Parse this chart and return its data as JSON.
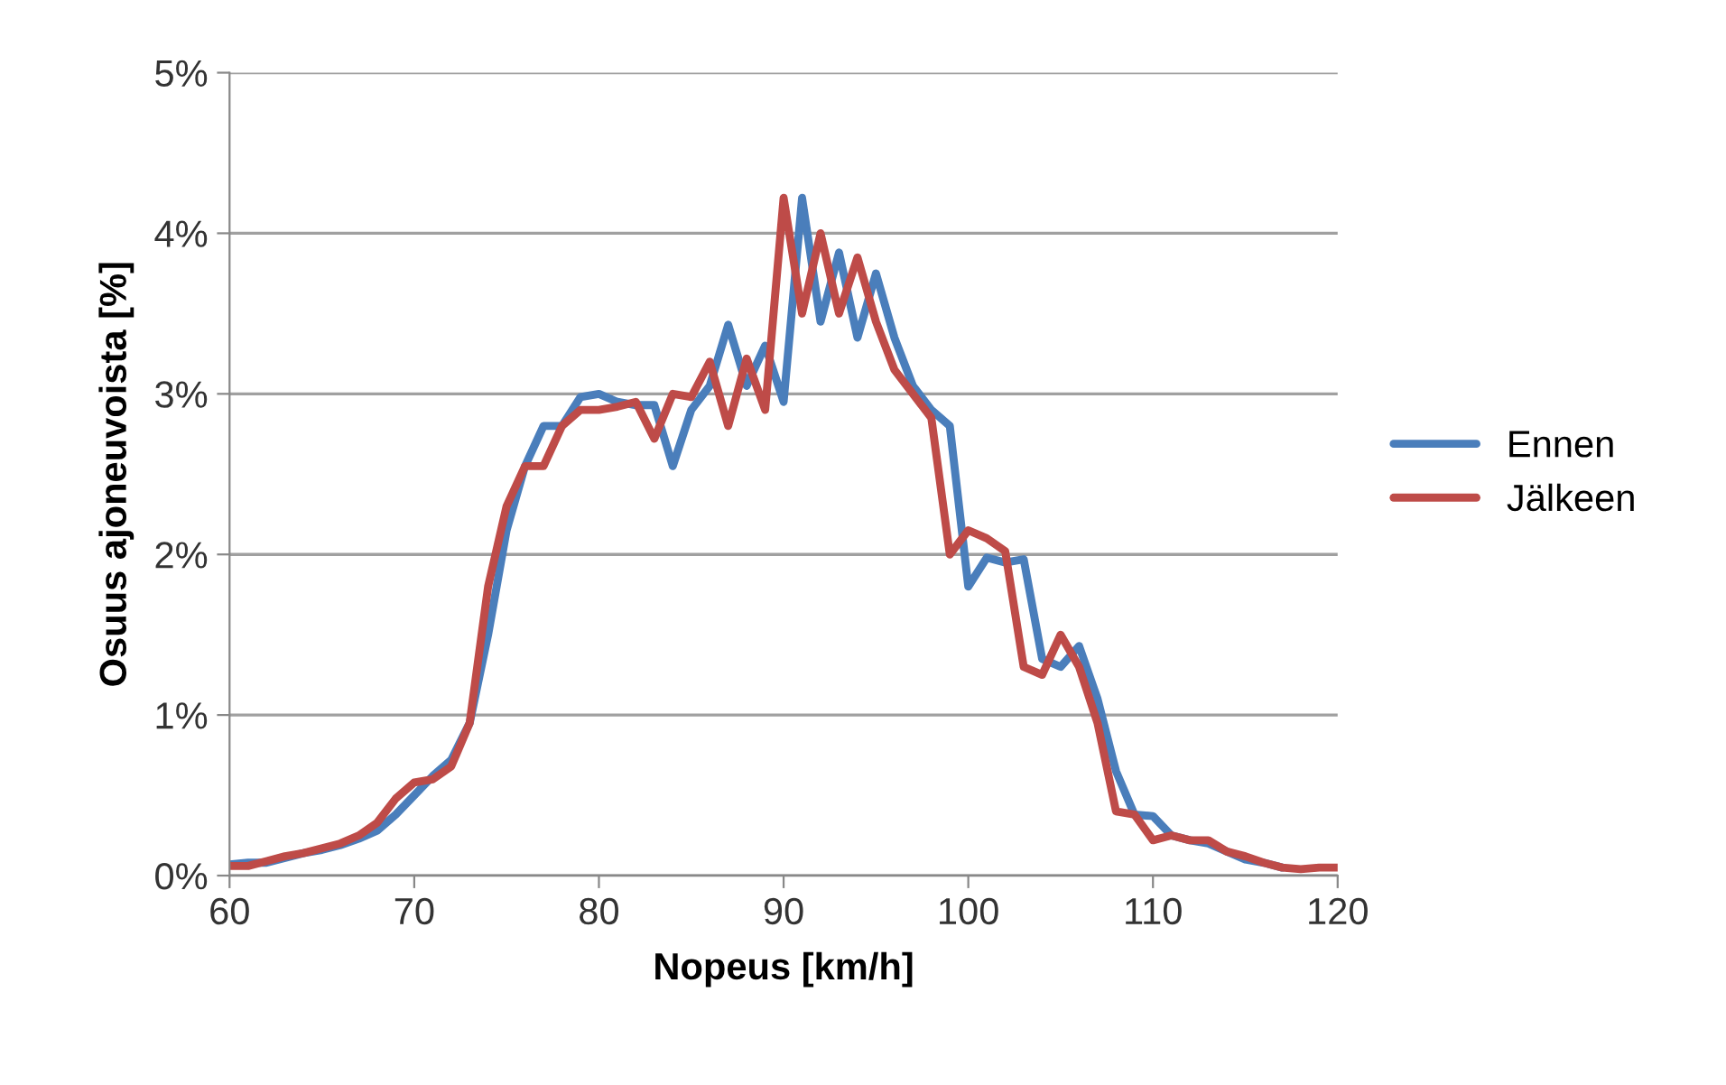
{
  "chart_data": {
    "type": "line",
    "xlabel": "Nopeus [km/h]",
    "ylabel": "Osuus ajoneuvoista [%]",
    "x": [
      60,
      61,
      62,
      63,
      64,
      65,
      66,
      67,
      68,
      69,
      70,
      71,
      72,
      73,
      74,
      75,
      76,
      77,
      78,
      79,
      80,
      81,
      82,
      83,
      84,
      85,
      86,
      87,
      88,
      89,
      90,
      91,
      92,
      93,
      94,
      95,
      96,
      97,
      98,
      99,
      100,
      101,
      102,
      103,
      104,
      105,
      106,
      107,
      108,
      109,
      110,
      111,
      112,
      113,
      114,
      115,
      116,
      117,
      118,
      119,
      120
    ],
    "series": [
      {
        "name": "Ennen",
        "color": "#4a7ebb",
        "values": [
          0.07,
          0.08,
          0.08,
          0.11,
          0.14,
          0.16,
          0.19,
          0.23,
          0.28,
          0.38,
          0.5,
          0.62,
          0.72,
          0.95,
          1.5,
          2.15,
          2.55,
          2.8,
          2.8,
          2.98,
          3.0,
          2.95,
          2.93,
          2.93,
          2.55,
          2.9,
          3.05,
          3.43,
          3.05,
          3.3,
          2.95,
          4.22,
          3.45,
          3.88,
          3.35,
          3.75,
          3.35,
          3.05,
          2.9,
          2.8,
          1.8,
          1.98,
          1.95,
          1.97,
          1.35,
          1.3,
          1.43,
          1.1,
          0.65,
          0.38,
          0.37,
          0.25,
          0.22,
          0.2,
          0.15,
          0.1,
          0.08,
          0.05,
          null,
          null,
          null
        ]
      },
      {
        "name": "Jälkeen",
        "color": "#be4b48",
        "values": [
          0.06,
          0.06,
          0.09,
          0.12,
          0.14,
          0.17,
          0.2,
          0.25,
          0.33,
          0.48,
          0.58,
          0.6,
          0.68,
          0.95,
          1.8,
          2.3,
          2.55,
          2.55,
          2.8,
          2.9,
          2.9,
          2.92,
          2.95,
          2.72,
          3.0,
          2.98,
          3.2,
          2.8,
          3.22,
          2.9,
          4.22,
          3.5,
          4.0,
          3.5,
          3.85,
          3.45,
          3.15,
          3.0,
          2.85,
          2.0,
          2.15,
          2.1,
          2.02,
          1.3,
          1.25,
          1.5,
          1.3,
          0.95,
          0.4,
          0.38,
          0.22,
          0.25,
          0.22,
          0.22,
          0.15,
          0.12,
          0.08,
          0.05,
          0.04,
          0.05,
          0.05
        ]
      }
    ],
    "xlim": [
      60,
      120
    ],
    "xticks": [
      60,
      70,
      80,
      90,
      100,
      110,
      120
    ],
    "ylim": [
      0,
      5
    ],
    "yticks": [
      {
        "value": 0,
        "label": "0%"
      },
      {
        "value": 1,
        "label": "1%"
      },
      {
        "value": 2,
        "label": "2%"
      },
      {
        "value": 3,
        "label": "3%"
      },
      {
        "value": 4,
        "label": "4%"
      },
      {
        "value": 5,
        "label": "5%"
      }
    ],
    "grid": "y",
    "legend": "right",
    "marker": "none",
    "line_style": "solid"
  }
}
